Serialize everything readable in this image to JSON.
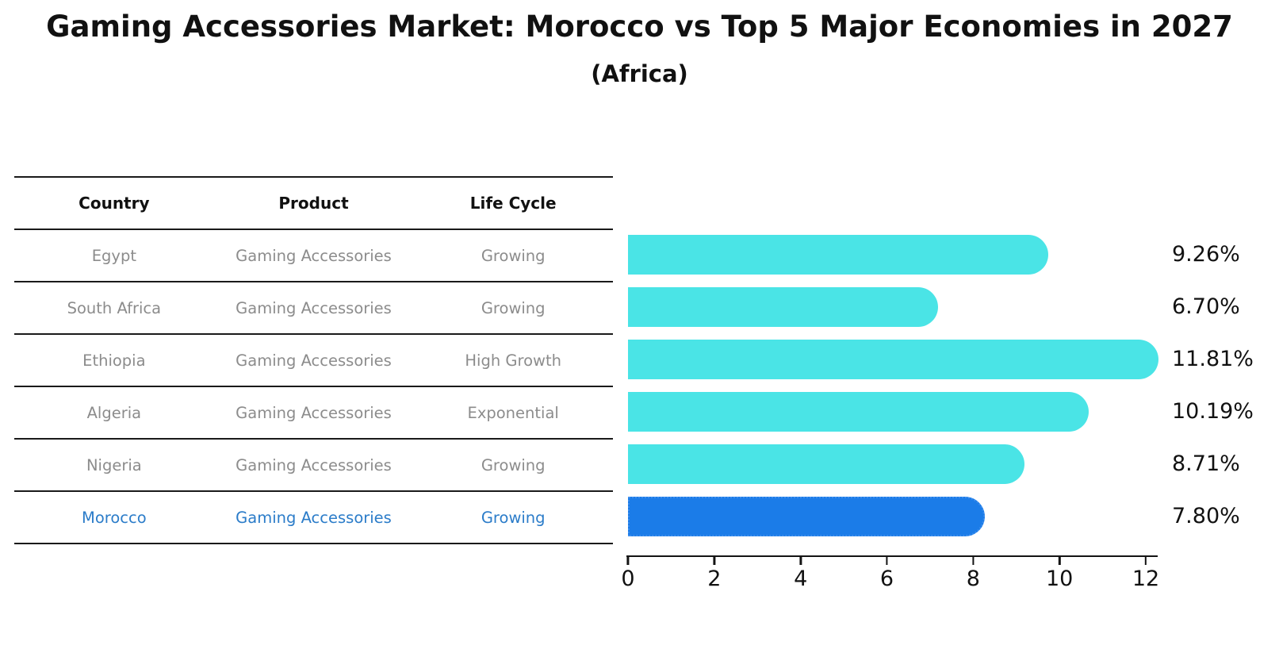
{
  "title": "Gaming Accessories Market: Morocco vs Top 5 Major Economies in 2027",
  "subtitle": "(Africa)",
  "table": {
    "headers": [
      "Country",
      "Product",
      "Life Cycle"
    ],
    "rows": [
      {
        "country": "Egypt",
        "product": "Gaming Accessories",
        "life_cycle": "Growing",
        "highlighted": false
      },
      {
        "country": "South Africa",
        "product": "Gaming Accessories",
        "life_cycle": "Growing",
        "highlighted": false
      },
      {
        "country": "Ethiopia",
        "product": "Gaming Accessories",
        "life_cycle": "High Growth",
        "highlighted": false
      },
      {
        "country": "Algeria",
        "product": "Gaming Accessories",
        "life_cycle": "Exponential",
        "highlighted": false
      },
      {
        "country": "Nigeria",
        "product": "Gaming Accessories",
        "life_cycle": "Growing",
        "highlighted": false
      },
      {
        "country": "Morocco",
        "product": "Gaming Accessories",
        "life_cycle": "Growing",
        "highlighted": true
      }
    ]
  },
  "chart_data": {
    "type": "bar",
    "orientation": "horizontal",
    "title": "Gaming Accessories Market: Morocco vs Top 5 Major Economies in 2027 (Africa)",
    "categories": [
      "Egypt",
      "South Africa",
      "Ethiopia",
      "Algeria",
      "Nigeria",
      "Morocco"
    ],
    "values": [
      9.26,
      6.7,
      11.81,
      10.19,
      8.71,
      7.8
    ],
    "value_labels": [
      "9.26%",
      "6.70%",
      "11.81%",
      "10.19%",
      "8.71%",
      "7.80%"
    ],
    "xticks": [
      "0",
      "2",
      "4",
      "6",
      "8",
      "10",
      "12"
    ],
    "xlim": [
      0,
      12.3
    ],
    "grid": false,
    "legend": false,
    "highlight_index": 5,
    "bar_color": "#4ae4e6",
    "highlight_color": "#1b7ce8"
  },
  "colors": {
    "bar_cyan": "#4ae4e6",
    "bar_blue": "#1b7ce8",
    "highlight_text": "#2b7cc9",
    "muted_text": "#8c8c8c",
    "line": "#1a1a1a"
  }
}
